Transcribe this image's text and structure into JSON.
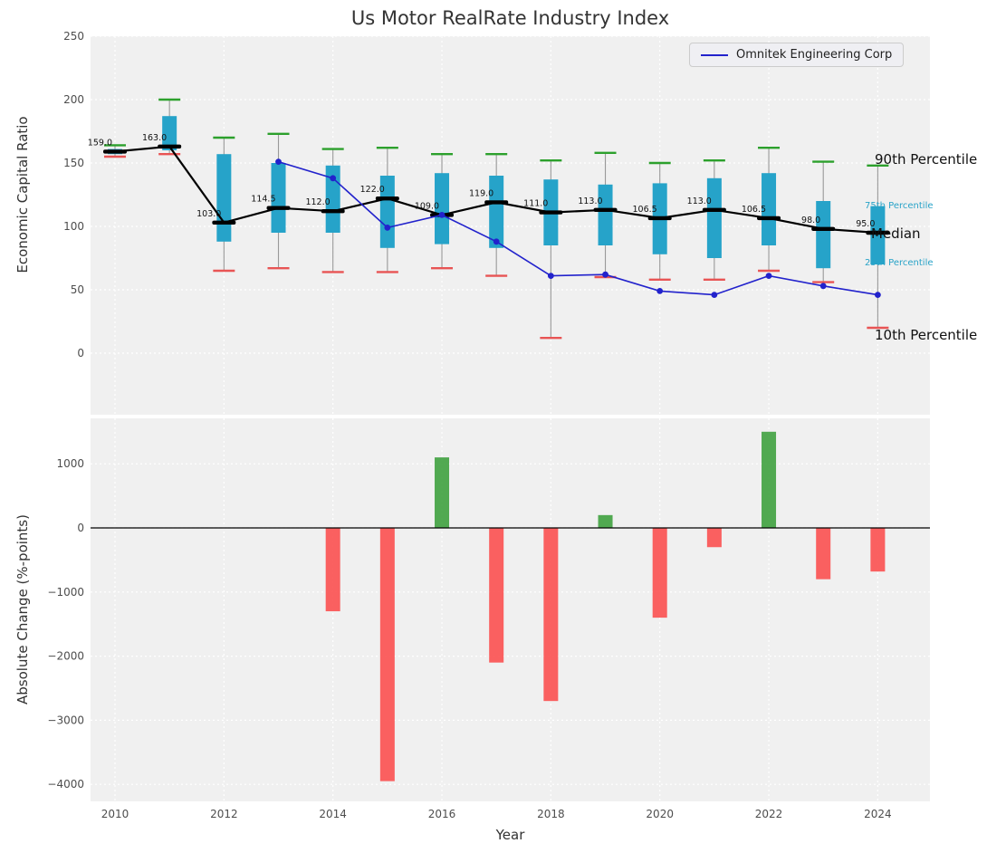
{
  "title": "Us Motor RealRate Industry Index",
  "colors": {
    "box": "#26a3c9",
    "cap_high": "#2ca02c",
    "cap_low": "#e85454",
    "median": "#000000",
    "company_line": "#2222cc",
    "bar_positive": "#3a9e3a",
    "bar_negative": "#fb4b4b",
    "plot_background": "#f0f0f0",
    "grid": "#ffffff",
    "tick_text": "#4d4d4d",
    "percentile_label_small": "#29a3c8",
    "whisker": "#999999"
  },
  "chart_data": [
    {
      "type": "box-percentile-line",
      "title": "Us Motor RealRate Industry Index",
      "ylabel": "Economic Capital Ratio",
      "xlabel": "",
      "ylim": [
        -48,
        250
      ],
      "yticks": [
        0,
        50,
        100,
        150,
        200,
        250
      ],
      "ytick_labels": [
        "0",
        "50",
        "100",
        "150",
        "200",
        "250"
      ],
      "xtick_years": [
        2010,
        2012,
        2014,
        2016,
        2018,
        2020,
        2022,
        2024
      ],
      "years": [
        2010,
        2011,
        2012,
        2013,
        2014,
        2015,
        2016,
        2017,
        2018,
        2019,
        2020,
        2021,
        2022,
        2023,
        2024
      ],
      "p90": [
        164,
        200,
        170,
        173,
        161,
        162,
        157,
        157,
        152,
        158,
        150,
        152,
        162,
        151,
        148
      ],
      "p75": [
        161,
        187,
        157,
        150,
        148,
        140,
        142,
        140,
        137,
        133,
        134,
        138,
        142,
        120,
        116
      ],
      "median": [
        159,
        163,
        103,
        114.5,
        112,
        122,
        109,
        119,
        111,
        113,
        106.5,
        113,
        106.5,
        98,
        95
      ],
      "p25": [
        157,
        160,
        88,
        95,
        95,
        83,
        86,
        83,
        85,
        85,
        78,
        75,
        85,
        67,
        70
      ],
      "p10": [
        155,
        157,
        65,
        67,
        64,
        64,
        67,
        61,
        12,
        60,
        58,
        58,
        65,
        56,
        20
      ],
      "median_labels": [
        "159.0",
        "163.0",
        "103.0",
        "114.5",
        "112.0",
        "122.0",
        "109.0",
        "119.0",
        "111.0",
        "113.0",
        "106.5",
        "113.0",
        "106.5",
        "98.0",
        "95.0"
      ],
      "legend": "Omnitek Engineering Corp",
      "right_labels": {
        "p90": "90th Percentile",
        "p75": "75th Percentile",
        "median": "Median",
        "p25": "25th Percentile",
        "p10": "10th Percentile"
      },
      "company_series": {
        "name": "Omnitek Engineering Corp",
        "x": [
          2013,
          2014,
          2015,
          2016,
          2017,
          2018,
          2019,
          2020,
          2021,
          2022,
          2023,
          2024
        ],
        "y": [
          151,
          138,
          99,
          109,
          88,
          61,
          62,
          49,
          46,
          61,
          53,
          46
        ]
      },
      "grid": true,
      "legend_position": "upper right"
    },
    {
      "type": "bar",
      "ylabel": "Absolute Change (%-points)",
      "xlabel": "Year",
      "ylim": [
        -4270,
        1700
      ],
      "yticks": [
        1000,
        0,
        -1000,
        -2000,
        -3000,
        -4000
      ],
      "ytick_labels": [
        "1000",
        "0",
        "−1000",
        "−2000",
        "−3000",
        "−4000"
      ],
      "xtick_years": [
        2010,
        2012,
        2014,
        2016,
        2018,
        2020,
        2022,
        2024
      ],
      "xtick_labels": [
        "2010",
        "2012",
        "2014",
        "2016",
        "2018",
        "2020",
        "2022",
        "2024"
      ],
      "x": [
        2014,
        2015,
        2016,
        2017,
        2018,
        2019,
        2020,
        2021,
        2022,
        2023,
        2024
      ],
      "values": [
        -1300,
        -3950,
        1100,
        -2100,
        -2700,
        200,
        -1400,
        -300,
        1500,
        -800,
        -680
      ],
      "grid": true
    }
  ]
}
